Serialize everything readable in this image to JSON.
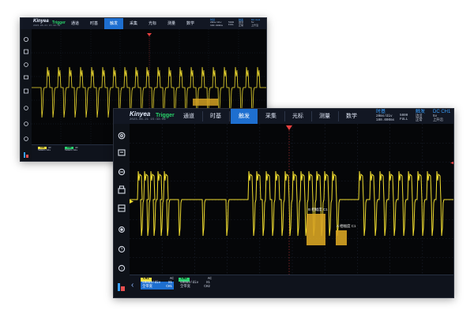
{
  "app": {
    "brand": "Kinyea",
    "trigger_label": "Trigger"
  },
  "tabs": [
    {
      "label": "通道"
    },
    {
      "label": "时基"
    },
    {
      "label": "触发",
      "active": true
    },
    {
      "label": "采集"
    },
    {
      "label": "光标"
    },
    {
      "label": "测量"
    },
    {
      "label": "数学"
    }
  ],
  "status": {
    "title": "时基",
    "line1": "20ms/div",
    "line2": "100.000ms",
    "sample1": "5000",
    "sample2": "FULL",
    "trig_title": "触发",
    "trig_mode": "DC",
    "trig_ch": "CH1",
    "trig_val1": "边沿",
    "trig_val2": "上升沿",
    "trig_val3": "5v",
    "trig_val4": "正常"
  },
  "channels": [
    {
      "name": "CH1",
      "coupling": "AC",
      "scale": "500mV/div",
      "probe": "X1",
      "mode": "全带宽",
      "extra": "CH1"
    },
    {
      "name": "CH2",
      "coupling": "AC",
      "scale": "500mV/div",
      "probe": "X1",
      "mode": "全带宽",
      "extra": "CH2"
    }
  ],
  "annotations": {
    "b_label": "B 相幅度 C1",
    "a_label": "A 相幅度 C1"
  },
  "colors": {
    "trace": "#f2de30",
    "accent": "#1e6fd0",
    "green": "#2bd36f",
    "annot": "#d7a423"
  },
  "icons": [
    "settings-icon",
    "measure-icon",
    "record-icon",
    "print-icon",
    "save-icon",
    "gear-icon",
    "help-icon",
    "info-icon",
    "app-logo-icon"
  ]
}
